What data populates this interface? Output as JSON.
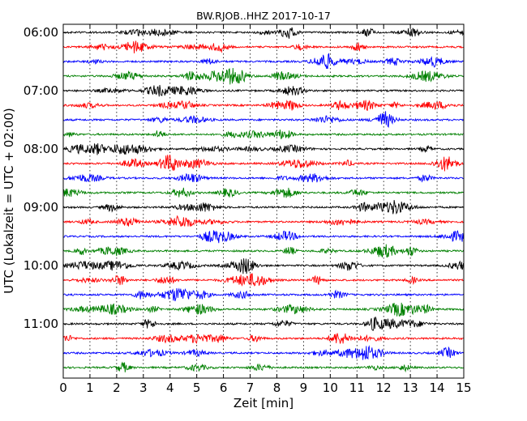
{
  "chart_data": {
    "type": "line",
    "title": "BW.RJOB..HHZ 2017-10-17",
    "xlabel": "Zeit  [min]",
    "ylabel": "UTC (Lokalzeit = UTC + 02:00)",
    "xlim": [
      0,
      15
    ],
    "x_ticks": [
      "0",
      "1",
      "2",
      "3",
      "4",
      "5",
      "6",
      "7",
      "8",
      "9",
      "10",
      "11",
      "12",
      "13",
      "14",
      "15"
    ],
    "y_ticks": [
      "06:00",
      "07:00",
      "08:00",
      "09:00",
      "10:00",
      "11:00"
    ],
    "traces_per_hour": 4,
    "trace_minutes": 15,
    "trace_count": 24,
    "trace_colors": [
      "#000000",
      "#ff0000",
      "#0000ff",
      "#008000"
    ],
    "grid": "vertical dotted",
    "legend": "none"
  }
}
